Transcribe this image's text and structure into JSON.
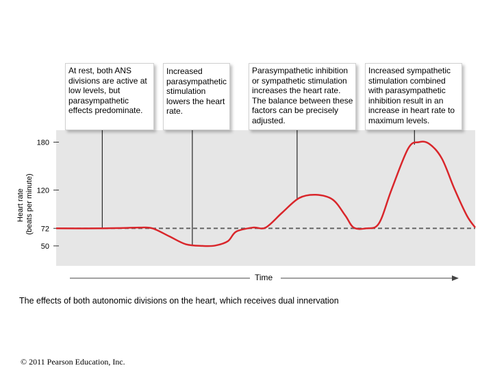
{
  "callouts": [
    "At rest, both ANS divisions are active at low levels, but parasympathetic effects predominate.",
    "Increased parasympathetic stimulation lowers the heart rate.",
    "Parasympathetic inhibition or sympathetic stimulation increases the heart rate. The balance between these factors can be precisely adjusted.",
    "Increased sympathetic stimulation combined with parasympathetic inhibition result in an increase in heart rate to maximum levels."
  ],
  "caption": "The effects of both autonomic divisions on the heart, which receives dual innervation",
  "copyright": "© 2011 Pearson Education, Inc.",
  "colors": {
    "curve": "#d9262b",
    "baseline": "#666666",
    "plot_bg": "#e6e6e6"
  },
  "chart_data": {
    "type": "line",
    "title": "",
    "xlabel": "Time",
    "ylabel": "Heart rate (beats per minute)",
    "ylabel_lines": [
      "Heart rate",
      "(beats per minute)"
    ],
    "yticks": [
      180,
      120,
      72,
      50
    ],
    "ylim": [
      25,
      195
    ],
    "xlim": [
      0,
      100
    ],
    "resting_rate": 72,
    "series": [
      {
        "name": "Heart rate",
        "x": [
          0,
          10,
          16,
          20,
          23,
          27,
          31,
          35,
          38,
          41,
          43,
          47,
          50,
          54,
          58,
          62,
          66,
          69,
          71,
          74,
          77,
          80,
          84,
          86.5,
          89,
          92,
          95,
          98,
          100
        ],
        "y": [
          72,
          72,
          72.5,
          73,
          72,
          62,
          52,
          50,
          50.5,
          56,
          68,
          73,
          73,
          92,
          110,
          114,
          108,
          88,
          73,
          72,
          78,
          120,
          172,
          180,
          178,
          160,
          122,
          88,
          73
        ]
      }
    ],
    "callout_x": [
      11,
      32.5,
      57.5,
      85.5
    ]
  }
}
